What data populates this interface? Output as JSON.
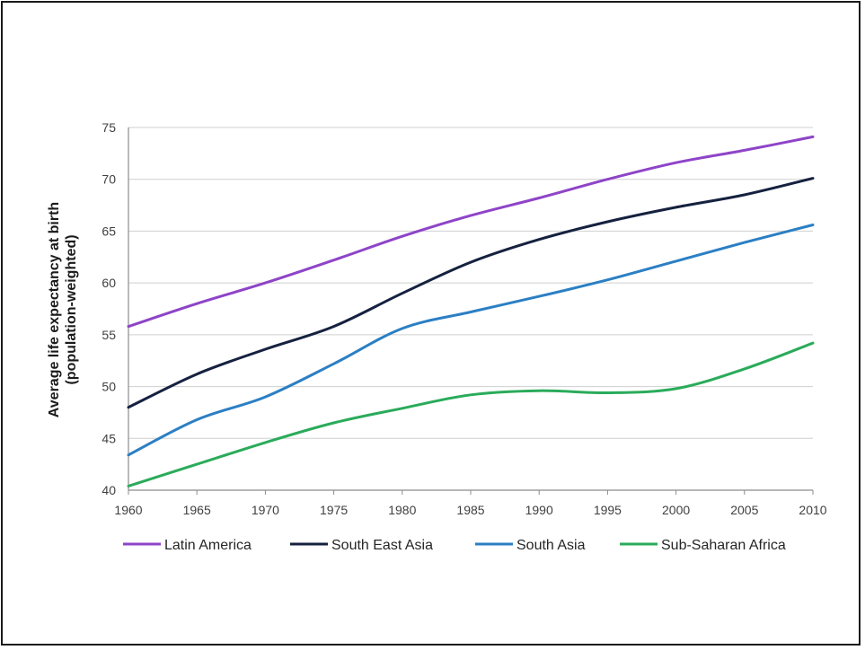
{
  "chart_data": {
    "type": "line",
    "ylabel_line1": "Average life expectancy at birth",
    "ylabel_line2": "(population-weighted)",
    "xlabel": "",
    "xlim": [
      1960,
      2010
    ],
    "ylim": [
      40,
      75
    ],
    "x_ticks": [
      "1960",
      "1965",
      "1970",
      "1975",
      "1980",
      "1985",
      "1990",
      "1995",
      "2000",
      "2005",
      "2010"
    ],
    "y_ticks": [
      "40",
      "45",
      "50",
      "55",
      "60",
      "65",
      "70",
      "75"
    ],
    "grid": true,
    "legend_position": "bottom",
    "x": [
      1960,
      1965,
      1970,
      1975,
      1980,
      1985,
      1990,
      1995,
      2000,
      2005,
      2010
    ],
    "series": [
      {
        "name": "Latin America",
        "color": "#8e44c8",
        "values": [
          55.8,
          58.0,
          60.0,
          62.2,
          64.5,
          66.5,
          68.2,
          70.0,
          71.6,
          72.8,
          74.1
        ]
      },
      {
        "name": "South East Asia",
        "color": "#15213f",
        "values": [
          48.0,
          51.2,
          53.6,
          55.8,
          59.0,
          62.0,
          64.2,
          65.9,
          67.3,
          68.5,
          70.1
        ]
      },
      {
        "name": "South Asia",
        "color": "#2b7fc4",
        "values": [
          43.4,
          46.8,
          49.0,
          52.2,
          55.6,
          57.2,
          58.7,
          60.3,
          62.1,
          63.9,
          65.6
        ]
      },
      {
        "name": "Sub-Saharan Africa",
        "color": "#2aab5a",
        "values": [
          40.4,
          42.5,
          44.6,
          46.5,
          47.9,
          49.2,
          49.6,
          49.4,
          49.8,
          51.7,
          54.2
        ]
      }
    ]
  }
}
